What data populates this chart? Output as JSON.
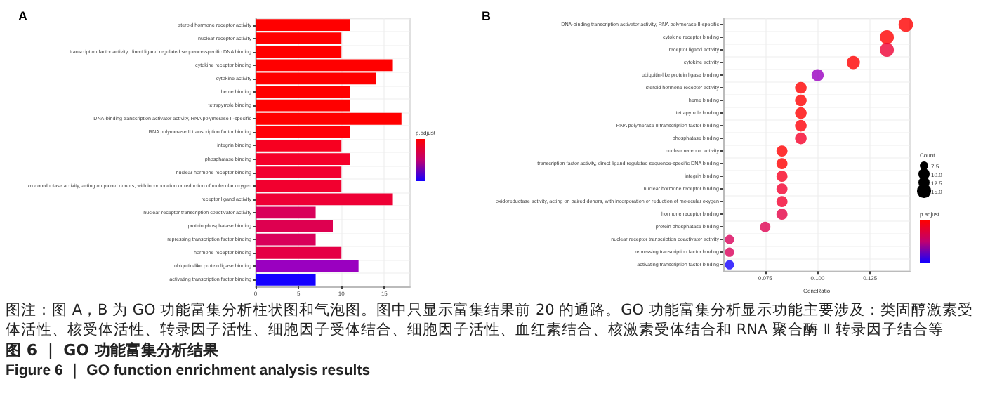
{
  "chart_data": [
    {
      "type": "bar",
      "title": "A",
      "orientation": "horizontal",
      "grid": true,
      "clabel": "p.adjust",
      "categories": [
        "steroid hormone receptor activity",
        "nuclear receptor activity",
        "transcription factor activity, direct ligand regulated sequence-specific DNA binding",
        "cytokine receptor binding",
        "cytokine activity",
        "heme binding",
        "tetrapyrrole binding",
        "DNA-binding transcription activator activity, RNA polymerase II-specific",
        "RNA polymerase II transcription factor binding",
        "integrin binding",
        "phosphatase binding",
        "nuclear hormone receptor binding",
        "oxidoreductase activity, acting on paired donors, with incorporation or reduction of molecular oxygen",
        "receptor ligand activity",
        "nuclear receptor transcription coactivator activity",
        "protein phosphatase binding",
        "repressing transcription factor binding",
        "hormone receptor binding",
        "ubiquitin-like protein ligase binding",
        "activating transcription factor binding"
      ],
      "values": [
        11,
        10,
        10,
        16,
        14,
        11,
        11,
        17,
        11,
        10,
        11,
        10,
        10,
        16,
        7,
        9,
        7,
        10,
        12,
        7
      ],
      "colors": [
        "#ff0000",
        "#ff0000",
        "#ff0000",
        "#ff0000",
        "#ff0000",
        "#ff0000",
        "#ff0000",
        "#ff0000",
        "#ff0008",
        "#f70020",
        "#f5002a",
        "#f2002f",
        "#f2002f",
        "#ee0035",
        "#d9005a",
        "#de0050",
        "#d9005a",
        "#e50045",
        "#9a00c0",
        "#1400ff"
      ],
      "xlim": [
        0,
        18
      ],
      "xticks": [
        0,
        5,
        10,
        15
      ]
    },
    {
      "type": "bubble",
      "title": "B",
      "orientation": "horizontal",
      "grid": true,
      "xlabel": "GeneRatio",
      "legend_title": "Count",
      "clabel": "p.adjust",
      "categories": [
        "DNA-binding transcription activator activity, RNA polymerase II-specific",
        "cytokine receptor binding",
        "receptor ligand activity",
        "cytokine activity",
        "ubiquitin-like protein ligase binding",
        "steroid hormone receptor activity",
        "heme binding",
        "tetrapyrrole binding",
        "RNA polymerase II transcription factor binding",
        "phosphatase binding",
        "nuclear receptor activity",
        "transcription factor activity, direct ligand regulated sequence-specific DNA binding",
        "integrin binding",
        "nuclear hormone receptor binding",
        "oxidoreductase activity, acting on paired donors, with incorporation or reduction of molecular oxygen",
        "hormone receptor binding",
        "protein phosphatase binding",
        "nuclear receptor transcription coactivator activity",
        "repressing transcription factor binding",
        "activating transcription factor binding"
      ],
      "values": [
        0.142,
        0.133,
        0.133,
        0.117,
        0.1,
        0.092,
        0.092,
        0.092,
        0.092,
        0.092,
        0.083,
        0.083,
        0.083,
        0.083,
        0.083,
        0.083,
        0.075,
        0.058,
        0.058,
        0.058
      ],
      "sizes": [
        17,
        16,
        16,
        14,
        12,
        11,
        11,
        11,
        11,
        11,
        10,
        10,
        10,
        10,
        10,
        10,
        9,
        7,
        7,
        7
      ],
      "size_legend": [
        7.5,
        {
          "value": 10,
          "label": "10.0"
        },
        12.5,
        {
          "value": 15,
          "label": "15.0"
        }
      ],
      "colors": [
        "#ff0000",
        "#ff0000",
        "#ee0035",
        "#ff0000",
        "#9a00c0",
        "#ff0000",
        "#ff0000",
        "#ff0000",
        "#ff0008",
        "#f5002a",
        "#ff0000",
        "#ff0000",
        "#f70020",
        "#f2002f",
        "#f2002f",
        "#e50045",
        "#de0050",
        "#d9005a",
        "#d9005a",
        "#1400ff"
      ],
      "xlim": [
        0.055,
        0.144
      ],
      "xticks": [
        0.075,
        {
          "value": 0.1,
          "label": "0.100"
        },
        {
          "value": 0.125,
          "label": "0.125"
        }
      ],
      "annotations": [
        "图注：图 A，B 为 GO 功能富集分析柱状图和气泡图。图中只显示富集结果前 20 的通路。GO 功能富集分析显示功能主要涉及：类固醇激素受体活性、核受体活性、转录因子活性、细胞因子受体结合、细胞因子活性、血红素结合、核激素受体结合和 RNA 聚合酶 Ⅱ 转录因子结合等",
        "图 6 ｜ GO 功能富集分析结果",
        "Figure 6 ｜ GO function enrichment analysis results"
      ]
    }
  ]
}
